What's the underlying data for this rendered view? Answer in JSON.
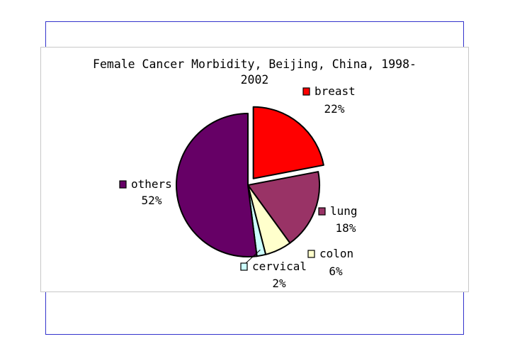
{
  "chart_data": {
    "type": "pie",
    "title": "Female Cancer Morbidity, Beijing, China, 1998-2002",
    "title_lines": [
      "Female Cancer Morbidity, Beijing, China, 1998-",
      "2002"
    ],
    "slices": [
      {
        "label": "breast",
        "value": 22,
        "value_label": "22%",
        "color": "#ff0000",
        "exploded": true
      },
      {
        "label": "lung",
        "value": 18,
        "value_label": "18%",
        "color": "#993366",
        "exploded": false
      },
      {
        "label": "colon",
        "value": 6,
        "value_label": "6%",
        "color": "#ffffcc",
        "exploded": false
      },
      {
        "label": "cervical",
        "value": 2,
        "value_label": "2%",
        "color": "#ccffff",
        "exploded": false
      },
      {
        "label": "others",
        "value": 52,
        "value_label": "52%",
        "color": "#660066",
        "exploded": false
      }
    ],
    "start_angle_deg": 0,
    "direction": "clockwise",
    "legend": "labels next to slices"
  }
}
